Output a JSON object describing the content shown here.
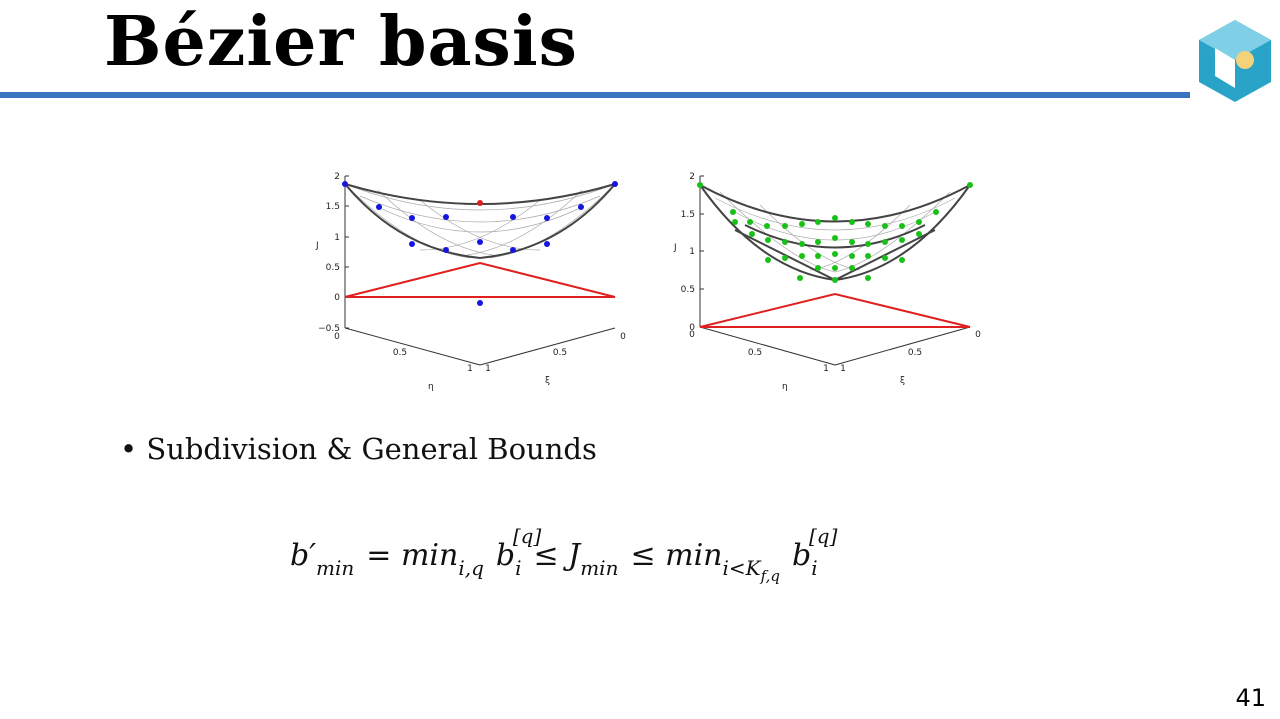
{
  "slide": {
    "title": "Bézier basis",
    "bullet": "Subdivision & General Bounds",
    "page_number": "41",
    "formula": [
      {
        "base": "b′",
        "sub": "min"
      },
      {
        "base": "= min",
        "sub": "i,q"
      },
      {
        "base": "b",
        "sub": "i",
        "sup": "[q]"
      },
      {
        "base": "≤ J",
        "sub": "min"
      },
      {
        "base": "≤ min",
        "sub": "i<K",
        "subsub": "f,q"
      },
      {
        "base": "b",
        "sub": "i",
        "sup": "[q]"
      }
    ],
    "plots": [
      {
        "z_label": "J",
        "eta_label": "η",
        "xi_label": "ξ",
        "z_ticks": [
          "2",
          "1.5",
          "1",
          "0.5",
          "0",
          "−0.5"
        ],
        "eta_ticks": [
          "0",
          "0.5",
          "1"
        ],
        "xi_ticks": [
          "1",
          "0.5",
          "0"
        ]
      },
      {
        "z_label": "J",
        "eta_label": "η",
        "xi_label": "ξ",
        "z_ticks": [
          "2",
          "1.5",
          "1",
          "0.5",
          "0"
        ],
        "eta_ticks": [
          "0",
          "0.5",
          "1"
        ],
        "xi_ticks": [
          "1",
          "0.5",
          "0"
        ]
      }
    ]
  }
}
